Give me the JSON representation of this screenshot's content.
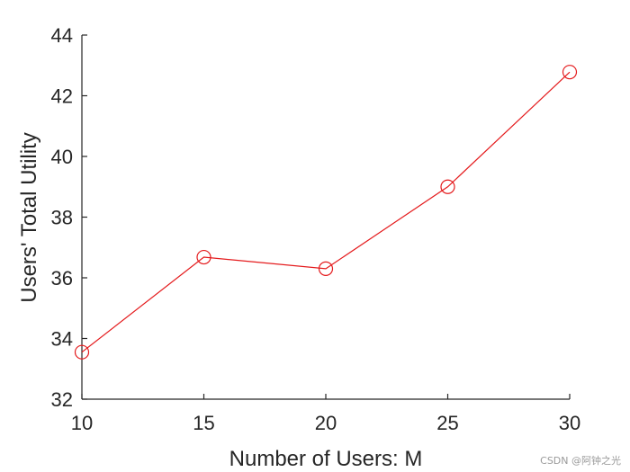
{
  "chart_data": {
    "type": "line",
    "x": [
      10,
      15,
      20,
      25,
      30
    ],
    "series": [
      {
        "values": [
          33.55,
          36.68,
          36.3,
          39.0,
          42.78
        ],
        "color": "#e41a1c",
        "marker": "circle"
      }
    ],
    "xlabel": "Number of Users: M",
    "ylabel": "Users' Total Utility",
    "xlim": [
      10,
      30
    ],
    "ylim": [
      32,
      44
    ],
    "xticks": [
      "10",
      "15",
      "20",
      "25",
      "30"
    ],
    "yticks": [
      "32",
      "34",
      "36",
      "38",
      "40",
      "42",
      "44"
    ],
    "grid": false,
    "axis_color": "#262626"
  },
  "watermark": "CSDN @阿钟之光"
}
